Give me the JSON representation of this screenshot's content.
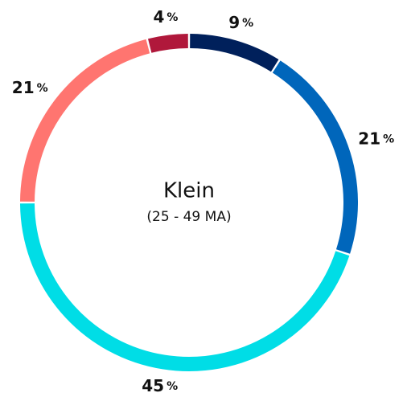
{
  "chart_data": {
    "type": "donut",
    "title": "Klein",
    "subtitle": "(25 - 49 MA)",
    "values": [
      9,
      21,
      45,
      21,
      4
    ],
    "unit": "%",
    "colors": [
      "#00205b",
      "#0066bb",
      "#00dde6",
      "#ff7570",
      "#b0183b"
    ]
  }
}
